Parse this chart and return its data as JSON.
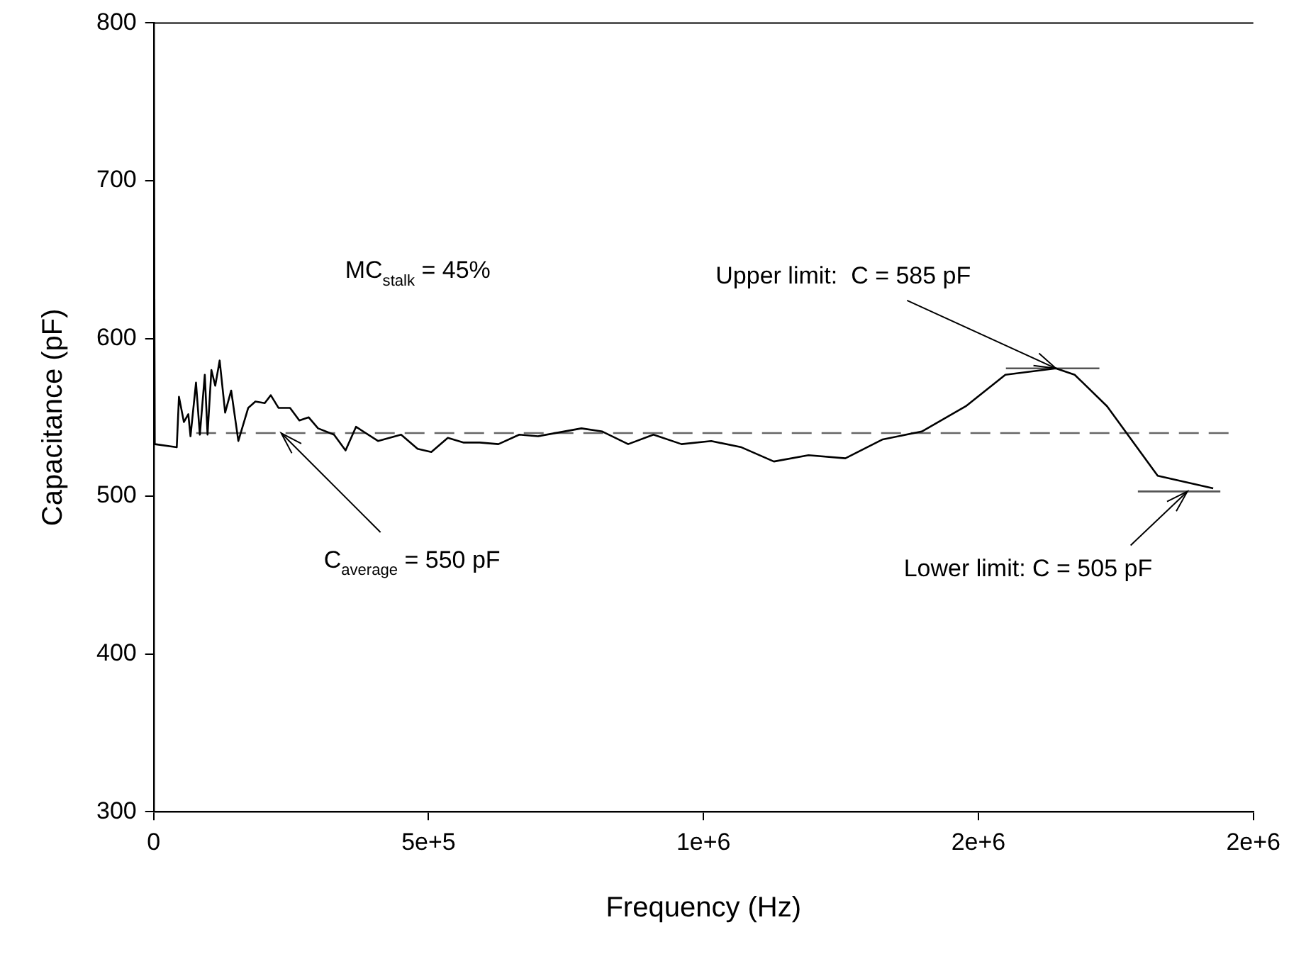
{
  "chart_data": {
    "type": "line",
    "xlabel": "Frequency (Hz)",
    "ylabel": "Capacitance (pF)",
    "xlim": [
      0,
      2000000
    ],
    "xticks": [
      0,
      {
        "value": 500000,
        "label": "5e+5"
      },
      {
        "value": 1000000,
        "label": "1e+6"
      },
      {
        "value": 1500000,
        "label": "2e+6"
      },
      {
        "value": 2000000,
        "label": "2e+6"
      }
    ],
    "ylim": [
      300,
      800
    ],
    "yticks": [
      300,
      400,
      500,
      600,
      700,
      800
    ],
    "grid": false,
    "legend": false,
    "marker": "none",
    "line_style": "solid",
    "series": [
      {
        "color": "#000000",
        "x": [
          0,
          2000,
          42000,
          46000,
          55000,
          63000,
          67000,
          77000,
          84000,
          93000,
          98000,
          105000,
          112000,
          120000,
          130000,
          141000,
          154000,
          172000,
          185000,
          202000,
          213000,
          227000,
          248000,
          265000,
          282000,
          299000,
          328000,
          349000,
          368000,
          408000,
          450000,
          480000,
          505000,
          535000,
          564000,
          593000,
          627000,
          665000,
          699000,
          778000,
          816000,
          863000,
          909000,
          960000,
          1014000,
          1069000,
          1128000,
          1191000,
          1258000,
          1326000,
          1397000,
          1477000,
          1549000,
          1641000,
          1675000,
          1734000,
          1826000,
          1927000
        ],
        "values": [
          800,
          533,
          531,
          563,
          547,
          552,
          538,
          572,
          539,
          577,
          539,
          580,
          570,
          586,
          553,
          567,
          535,
          556,
          560,
          559,
          564,
          556,
          556,
          548,
          550,
          543,
          539,
          529,
          544,
          535,
          539,
          530,
          528,
          537,
          534,
          534,
          533,
          539,
          538,
          543,
          541,
          533,
          539,
          533,
          535,
          531,
          522,
          526,
          524,
          536,
          541,
          557,
          577,
          581,
          577,
          557,
          513,
          505
        ]
      },
      {
        "color": "#555555",
        "x": [
          1550000,
          1720000
        ],
        "values": [
          581,
          581
        ]
      },
      {
        "color": "#555555",
        "x": [
          1790000,
          1940000
        ],
        "values": [
          503,
          503
        ]
      }
    ],
    "ref_lines": [
      {
        "axis": "y",
        "value": 540,
        "color": "#666666",
        "line_style": "dashed"
      }
    ],
    "annotations": [
      "MC$_{stalk}$ = 45%",
      {
        "text": "Upper limit:  C = 585 pF",
        "x": 1641000,
        "y": 581
      },
      {
        "text": "C$_{average}$ = 550 pF",
        "x": 232000,
        "y": 540
      },
      {
        "text": "Lower limit: C = 505 pF",
        "x": 1880000,
        "y": 503
      }
    ]
  }
}
